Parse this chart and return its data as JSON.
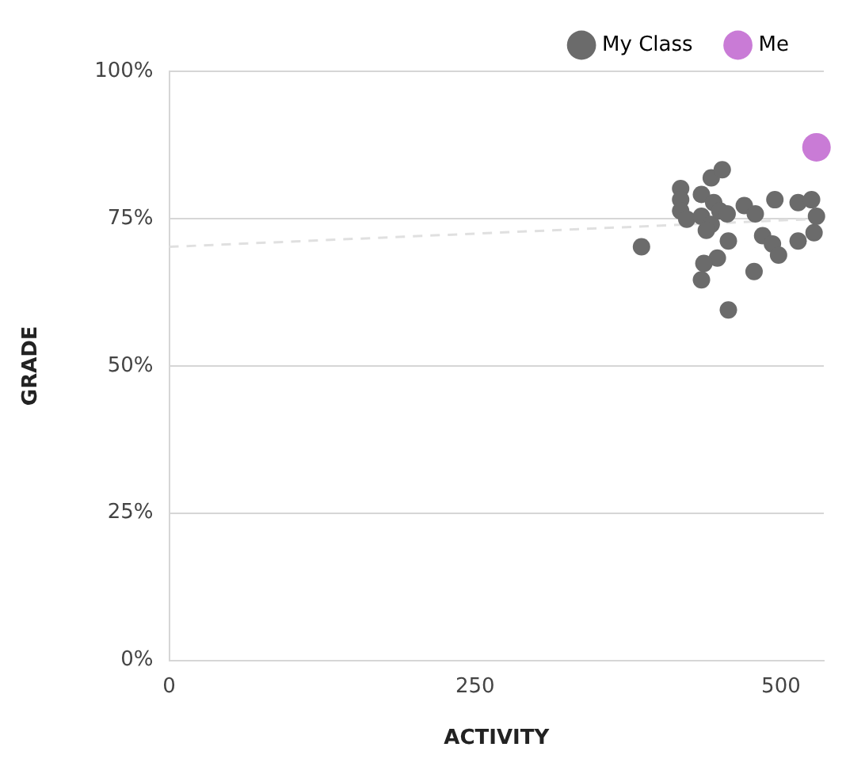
{
  "chart_data": {
    "type": "scatter",
    "xlabel": "ACTIVITY",
    "ylabel": "GRADE",
    "xlim": [
      0,
      535
    ],
    "xticks": [
      0,
      250,
      500
    ],
    "ylim": [
      0,
      100
    ],
    "yticks": [
      {
        "value": 0,
        "label": "0%"
      },
      {
        "value": 25,
        "label": "25%"
      },
      {
        "value": 50,
        "label": "50%"
      },
      {
        "value": 75,
        "label": "75%"
      },
      {
        "value": 100,
        "label": "100%"
      }
    ],
    "grid": "y",
    "legend": "top right",
    "marker": "circle",
    "series": [
      {
        "name": "My Class",
        "color": "#6b6b6b",
        "x": [
          386,
          418,
          418,
          418,
          423,
          435,
          435,
          443,
          452,
          445,
          443,
          439,
          450,
          456,
          470,
          479,
          457,
          485,
          493,
          498,
          495,
          514,
          525,
          529,
          527,
          514,
          448,
          437,
          435,
          478,
          457
        ],
        "values": [
          70.2,
          80.1,
          78.2,
          76.3,
          74.9,
          79.1,
          75.4,
          81.9,
          83.3,
          77.7,
          74.0,
          73.0,
          76.3,
          75.8,
          77.2,
          75.8,
          71.2,
          72.1,
          70.7,
          68.8,
          78.2,
          77.7,
          78.2,
          75.4,
          72.6,
          71.2,
          68.3,
          67.4,
          64.6,
          66.0,
          59.5
        ]
      },
      {
        "name": "Me",
        "color": "#c97bd6",
        "x": [
          529
        ],
        "values": [
          87.1
        ]
      },
      {
        "type": "line",
        "color": "#e0e0e0",
        "line_style": "dashed",
        "marker": "none",
        "x": [
          0,
          535
        ],
        "values": [
          70.2,
          75.0
        ]
      }
    ]
  }
}
